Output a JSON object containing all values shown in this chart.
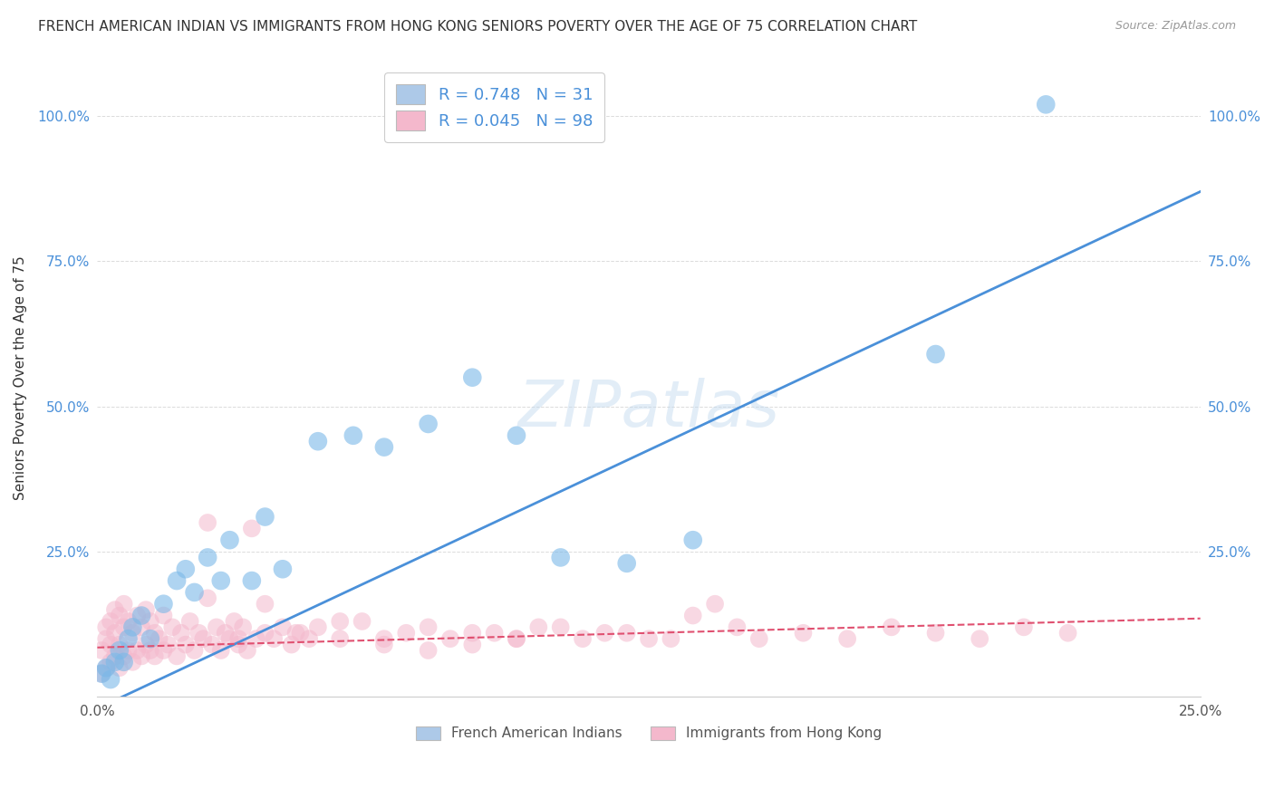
{
  "title": "FRENCH AMERICAN INDIAN VS IMMIGRANTS FROM HONG KONG SENIORS POVERTY OVER THE AGE OF 75 CORRELATION CHART",
  "source": "Source: ZipAtlas.com",
  "ylabel": "Seniors Poverty Over the Age of 75",
  "xlim": [
    0.0,
    0.25
  ],
  "ylim": [
    0.0,
    1.1
  ],
  "legend1_label": "R = 0.748   N = 31",
  "legend2_label": "R = 0.045   N = 98",
  "legend1_color": "#adc9e8",
  "legend2_color": "#f4b8cc",
  "series1_color": "#7ab8e8",
  "series2_color": "#f4b8cc",
  "line1_color": "#4a90d9",
  "line2_color": "#e05070",
  "watermark": "ZIPatlas",
  "background_color": "#ffffff",
  "grid_color": "#d8d8d8",
  "title_fontsize": 11,
  "axis_label_fontsize": 11,
  "tick_fontsize": 11,
  "blue_x": [
    0.001,
    0.002,
    0.003,
    0.004,
    0.005,
    0.006,
    0.007,
    0.008,
    0.01,
    0.012,
    0.015,
    0.018,
    0.02,
    0.022,
    0.025,
    0.028,
    0.03,
    0.035,
    0.038,
    0.042,
    0.05,
    0.058,
    0.065,
    0.075,
    0.085,
    0.095,
    0.105,
    0.12,
    0.135,
    0.19,
    0.215
  ],
  "blue_y": [
    0.04,
    0.05,
    0.03,
    0.06,
    0.08,
    0.06,
    0.1,
    0.12,
    0.14,
    0.1,
    0.16,
    0.2,
    0.22,
    0.18,
    0.24,
    0.2,
    0.27,
    0.2,
    0.31,
    0.22,
    0.44,
    0.45,
    0.43,
    0.47,
    0.55,
    0.45,
    0.24,
    0.23,
    0.27,
    0.59,
    1.02
  ],
  "pink_x": [
    0.001,
    0.001,
    0.002,
    0.002,
    0.002,
    0.003,
    0.003,
    0.003,
    0.004,
    0.004,
    0.004,
    0.005,
    0.005,
    0.005,
    0.006,
    0.006,
    0.006,
    0.007,
    0.007,
    0.008,
    0.008,
    0.009,
    0.009,
    0.01,
    0.01,
    0.011,
    0.011,
    0.012,
    0.012,
    0.013,
    0.013,
    0.014,
    0.015,
    0.015,
    0.016,
    0.017,
    0.018,
    0.019,
    0.02,
    0.021,
    0.022,
    0.023,
    0.024,
    0.025,
    0.026,
    0.027,
    0.028,
    0.029,
    0.03,
    0.031,
    0.032,
    0.033,
    0.034,
    0.035,
    0.036,
    0.038,
    0.04,
    0.042,
    0.044,
    0.046,
    0.048,
    0.05,
    0.055,
    0.06,
    0.065,
    0.07,
    0.075,
    0.08,
    0.085,
    0.09,
    0.095,
    0.1,
    0.11,
    0.12,
    0.13,
    0.14,
    0.15,
    0.16,
    0.17,
    0.18,
    0.19,
    0.2,
    0.21,
    0.22,
    0.025,
    0.032,
    0.038,
    0.045,
    0.055,
    0.065,
    0.075,
    0.085,
    0.095,
    0.105,
    0.115,
    0.125,
    0.135,
    0.145
  ],
  "pink_y": [
    0.04,
    0.08,
    0.05,
    0.1,
    0.12,
    0.06,
    0.09,
    0.13,
    0.07,
    0.11,
    0.15,
    0.05,
    0.09,
    0.14,
    0.07,
    0.12,
    0.16,
    0.08,
    0.13,
    0.06,
    0.11,
    0.08,
    0.14,
    0.07,
    0.12,
    0.09,
    0.15,
    0.08,
    0.13,
    0.07,
    0.11,
    0.1,
    0.08,
    0.14,
    0.09,
    0.12,
    0.07,
    0.11,
    0.09,
    0.13,
    0.08,
    0.11,
    0.1,
    0.3,
    0.09,
    0.12,
    0.08,
    0.11,
    0.1,
    0.13,
    0.09,
    0.12,
    0.08,
    0.29,
    0.1,
    0.11,
    0.1,
    0.12,
    0.09,
    0.11,
    0.1,
    0.12,
    0.1,
    0.13,
    0.09,
    0.11,
    0.08,
    0.1,
    0.09,
    0.11,
    0.1,
    0.12,
    0.1,
    0.11,
    0.1,
    0.16,
    0.1,
    0.11,
    0.1,
    0.12,
    0.11,
    0.1,
    0.12,
    0.11,
    0.17,
    0.1,
    0.16,
    0.11,
    0.13,
    0.1,
    0.12,
    0.11,
    0.1,
    0.12,
    0.11,
    0.1,
    0.14,
    0.12
  ],
  "blue_line_x0": 0.0,
  "blue_line_y0": -0.02,
  "blue_line_x1": 0.25,
  "blue_line_y1": 0.87,
  "pink_line_x0": 0.0,
  "pink_line_y0": 0.085,
  "pink_line_x1": 0.25,
  "pink_line_y1": 0.135
}
